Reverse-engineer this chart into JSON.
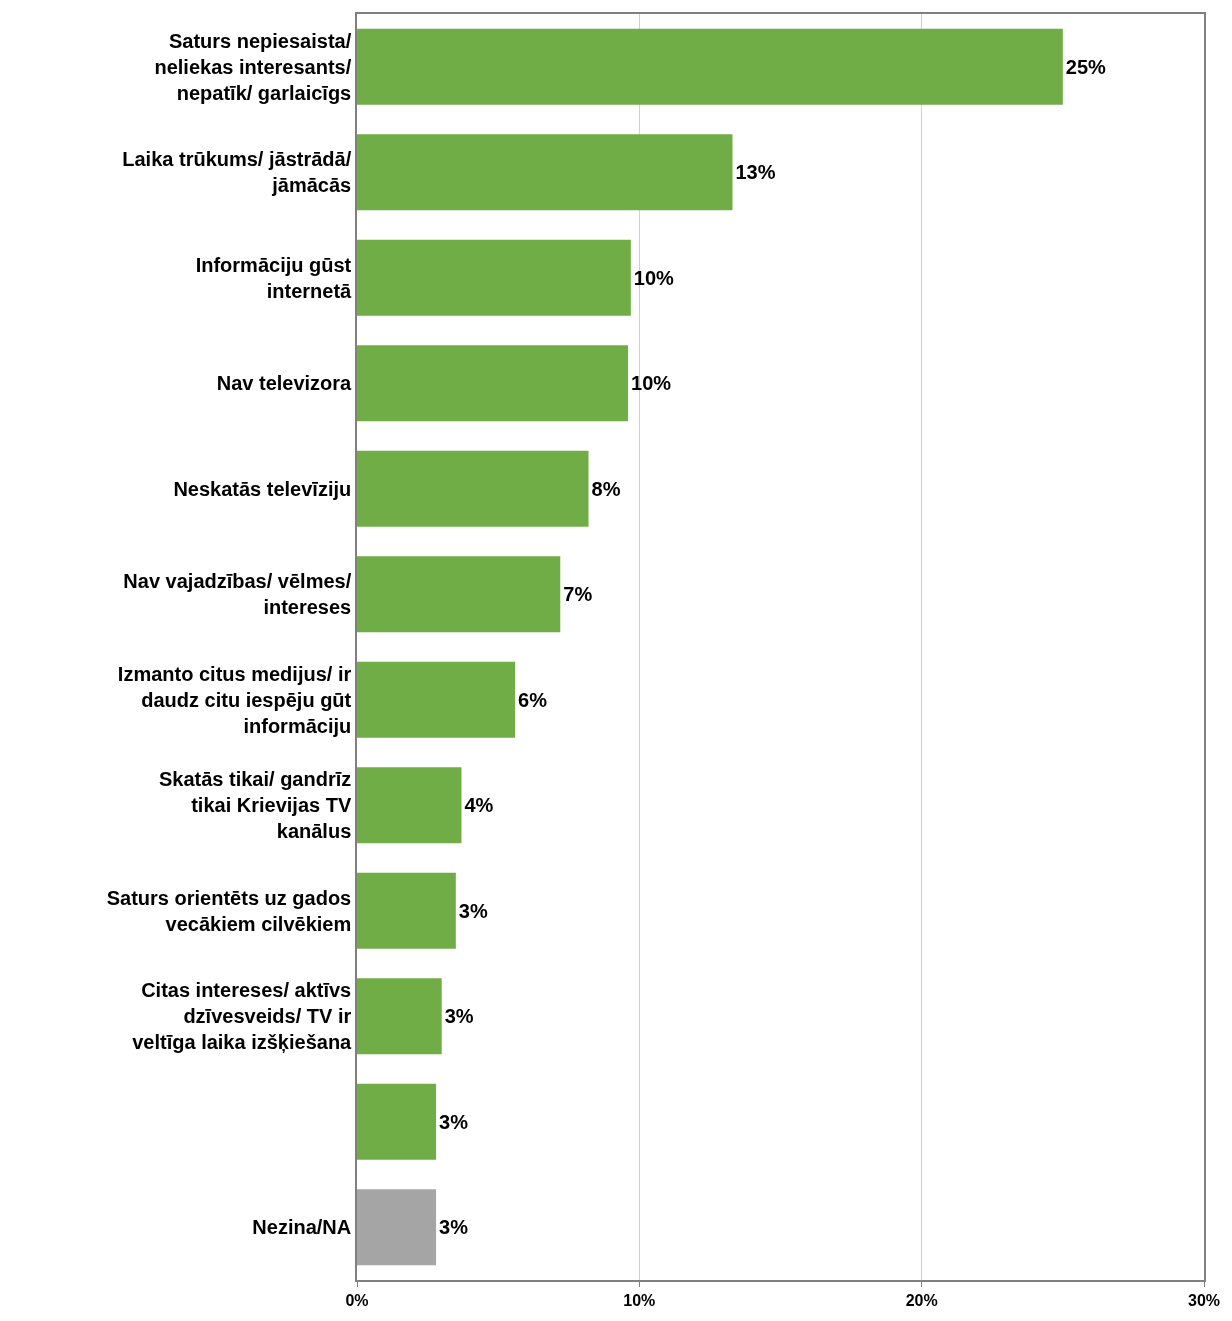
{
  "chart_data": {
    "type": "bar",
    "orientation": "horizontal",
    "categories": [
      "Saturs nepiesaista/ neliekas interesants/ nepatīk/ garlaicīgs",
      "Laika trūkums/ jāstrādā/ jāmācās",
      "Informāciju gūst internetā",
      "Nav televizora",
      "Neskatās televīziju",
      "Nav vajadzības/ vēlmes/ intereses",
      "Izmanto citus medijus/ ir daudz citu iespēju gūt informāciju",
      "Skatās tikai/ gandrīz tikai Krievijas TV kanālus",
      "Saturs orientēts uz gados vecākiem cilvēkiem",
      "Citas intereses/ aktīvs dzīvesveids/ TV ir veltīga laika izšķiešana",
      null,
      "Nezina/NA"
    ],
    "values": [
      25.0,
      13.3,
      9.7,
      9.6,
      8.2,
      7.2,
      5.6,
      3.7,
      3.5,
      3.0,
      2.8,
      2.8
    ],
    "value_labels": [
      "25%",
      "13%",
      "10%",
      "10%",
      "8%",
      "7%",
      "6%",
      "4%",
      "3%",
      "3%",
      "3%",
      "3%"
    ],
    "colors": [
      "#70ad47",
      "#70ad47",
      "#70ad47",
      "#70ad47",
      "#70ad47",
      "#70ad47",
      "#70ad47",
      "#70ad47",
      "#70ad47",
      "#70ad47",
      "#70ad47",
      "#a5a5a5"
    ],
    "xlim": [
      0,
      30
    ],
    "xticks": [
      {
        "value": 0,
        "label": "0%"
      },
      {
        "value": 10,
        "label": "10%"
      },
      {
        "value": 20,
        "label": "20%"
      },
      {
        "value": 30,
        "label": "30%"
      }
    ],
    "grid": "x",
    "legend": false
  }
}
